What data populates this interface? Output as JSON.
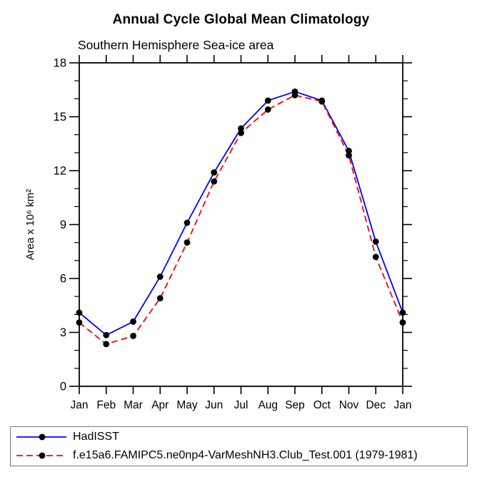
{
  "chart_data": {
    "type": "line",
    "title": "Annual Cycle Global Mean Climatology",
    "subtitle": "Southern Hemisphere Sea-ice area",
    "ylabel": "Area x 10⁶ km²",
    "xlabel": "",
    "ylim": [
      0,
      18
    ],
    "ytick_major": [
      0,
      3,
      6,
      9,
      12,
      15,
      18
    ],
    "ytick_minor_step": 1,
    "grid": false,
    "legend_position": "bottom-left-box",
    "categories": [
      "Jan",
      "Feb",
      "Mar",
      "Apr",
      "May",
      "Jun",
      "Jul",
      "Aug",
      "Sep",
      "Oct",
      "Nov",
      "Dec",
      "Jan"
    ],
    "series": [
      {
        "name": "HadISST",
        "color": "#0000ff",
        "line_style": "solid",
        "marker": "circle",
        "marker_color": "#000000",
        "values": [
          4.1,
          2.85,
          3.6,
          6.1,
          9.1,
          11.9,
          14.35,
          15.9,
          16.4,
          15.9,
          13.1,
          8.05,
          4.1
        ]
      },
      {
        "name": "f.e15a6.FAMIPC5.ne0np4-VarMeshNH3.Club_Test.001 (1979-1981)",
        "color": "#ff0000",
        "line_style": "dashed",
        "marker": "circle",
        "marker_color": "#000000",
        "values": [
          3.55,
          2.35,
          2.8,
          4.9,
          8.0,
          11.4,
          14.1,
          15.4,
          16.2,
          15.85,
          12.85,
          7.2,
          3.55
        ]
      }
    ]
  }
}
